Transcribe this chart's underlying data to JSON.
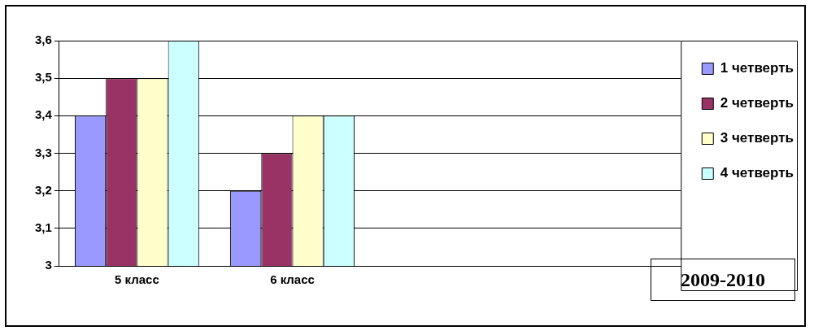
{
  "chart_data": {
    "type": "bar",
    "categories": [
      "5 класс",
      "6 класс",
      null,
      null
    ],
    "series": [
      {
        "name": "1 четверть",
        "color": "#9999ff",
        "values": [
          3.4,
          3.2,
          null,
          null
        ]
      },
      {
        "name": "2 четверть",
        "color": "#993366",
        "values": [
          3.5,
          3.3,
          null,
          null
        ]
      },
      {
        "name": "3 четверть",
        "color": "#ffffcc",
        "values": [
          3.5,
          3.4,
          null,
          null
        ]
      },
      {
        "name": "4 четверть",
        "color": "#ccffff",
        "values": [
          3.6,
          3.4,
          null,
          null
        ]
      }
    ],
    "ylim": [
      3,
      3.6
    ],
    "yticks": [
      {
        "value": 3,
        "label": "3"
      },
      {
        "value": 3.1,
        "label": "3,1"
      },
      {
        "value": 3.2,
        "label": "3,2"
      },
      {
        "value": 3.3,
        "label": "3,3"
      },
      {
        "value": 3.4,
        "label": "3,4"
      },
      {
        "value": 3.5,
        "label": "3,5"
      },
      {
        "value": 3.6,
        "label": "3,6"
      }
    ],
    "grid": "y",
    "legend": "right",
    "annotations": [
      "2009-2010"
    ]
  }
}
